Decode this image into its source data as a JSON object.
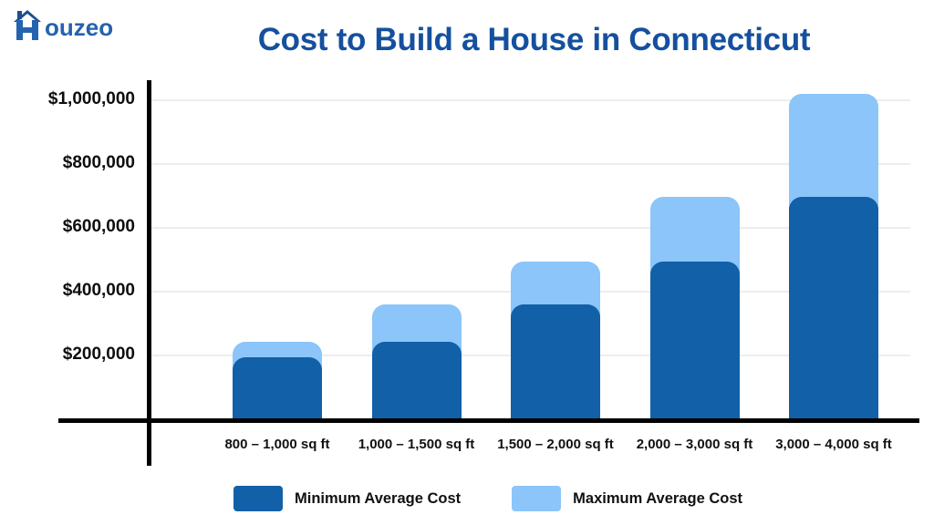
{
  "logo": {
    "text": "ouzeo",
    "alt": "Houzeo",
    "color": "#2463AE"
  },
  "title": {
    "text": "Cost to Build a House in Connecticut",
    "color": "#15509E"
  },
  "chart_data": {
    "type": "bar",
    "title": "Cost to Build a House in Connecticut",
    "categories": [
      "800 – 1,000 sq ft",
      "1,000 – 1,500 sq ft",
      "1,500 – 2,000 sq ft",
      "2,000 – 3,000 sq ft",
      "3,000 – 4,000 sq ft"
    ],
    "series": [
      {
        "name": "Minimum Average Cost",
        "color": "#1160A8",
        "values": [
          200000,
          250000,
          365000,
          500000,
          700000
        ]
      },
      {
        "name": "Maximum Average Cost",
        "color": "#8BC5FA",
        "values": [
          250000,
          365000,
          500000,
          700000,
          1020000
        ]
      }
    ],
    "xlabel": "",
    "ylabel": "",
    "ylim": [
      0,
      1000000
    ],
    "yticks": [
      {
        "value": 1000000,
        "label": "$1,000,000"
      },
      {
        "value": 800000,
        "label": "$800,000"
      },
      {
        "value": 600000,
        "label": "$600,000"
      },
      {
        "value": 400000,
        "label": "$400,000"
      },
      {
        "value": 200000,
        "label": "$200,000"
      }
    ],
    "grid": true,
    "legend_position": "bottom",
    "bar_style": "overlaid",
    "colors": {
      "axis": "#000000",
      "gridline": "#ededed",
      "tick_text": "#0d0d0d"
    }
  },
  "legend": {
    "items": [
      {
        "label": "Minimum Average Cost",
        "color": "#1160A8"
      },
      {
        "label": "Maximum Average Cost",
        "color": "#8BC5FA"
      }
    ]
  }
}
